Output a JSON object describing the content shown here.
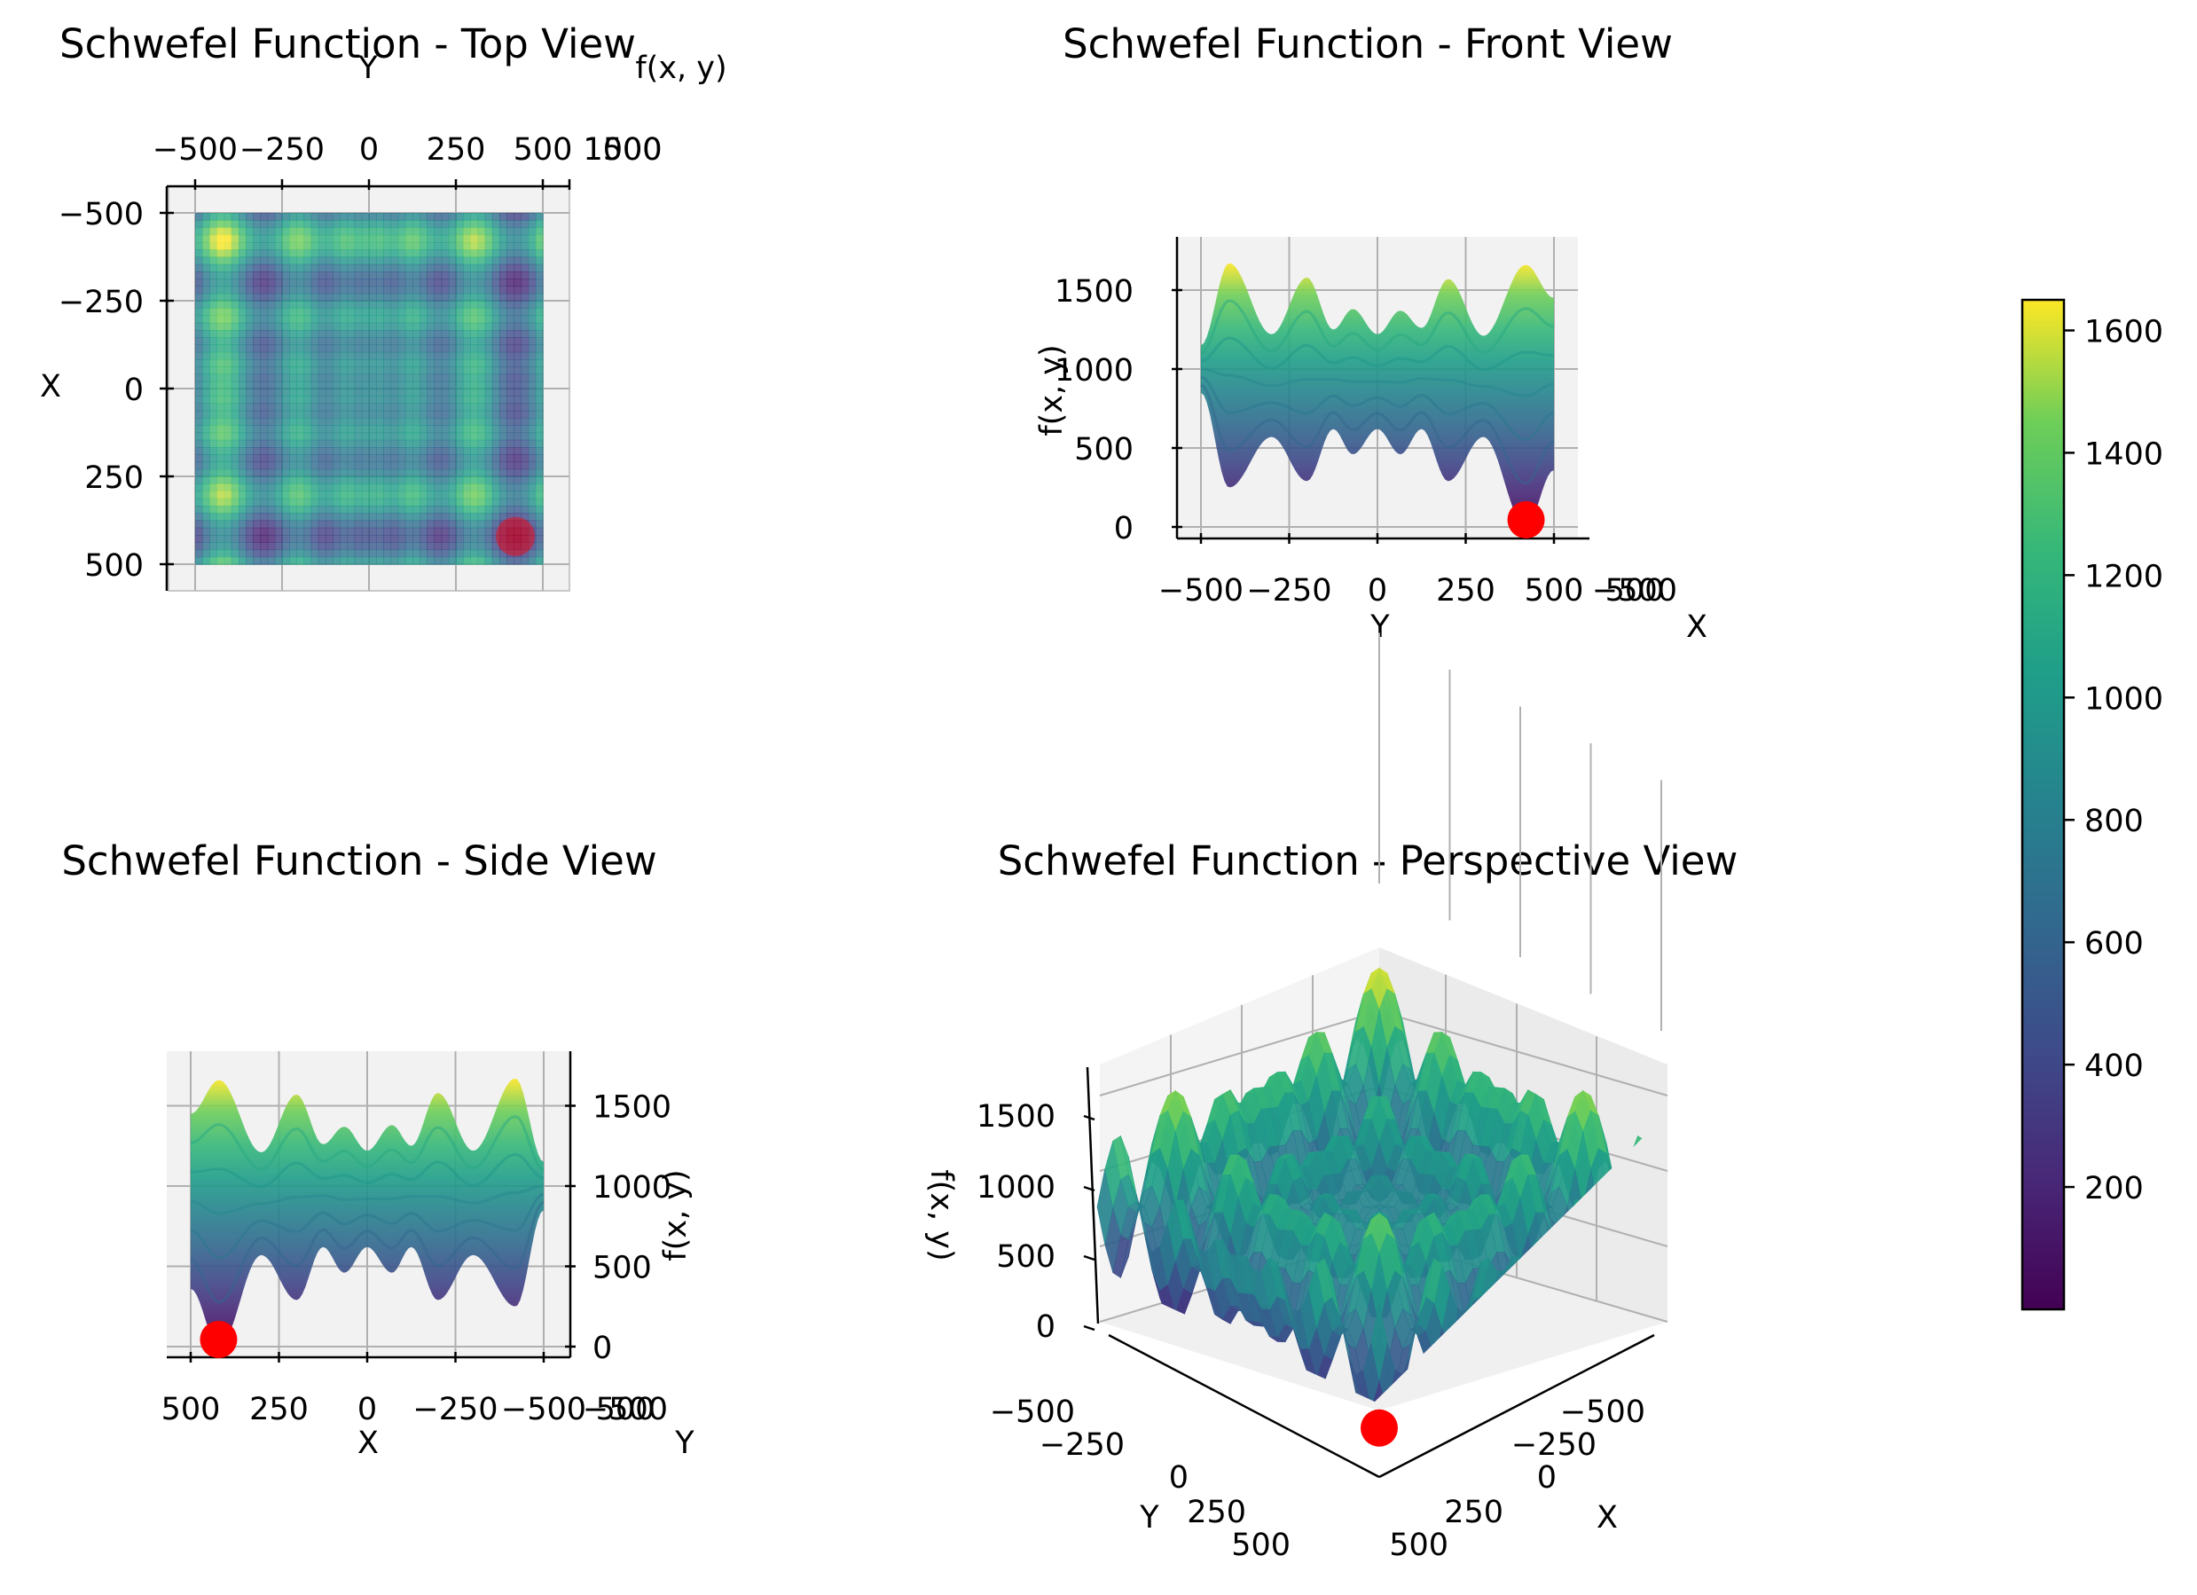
{
  "figure": {
    "titles": {
      "top": "Schwefel Function - Top View",
      "front": "Schwefel Function - Front View",
      "side": "Schwefel Function - Side View",
      "perspective": "Schwefel Function - Perspective View"
    },
    "axis_labels": {
      "x": "X",
      "y": "Y",
      "z": "f(x, y)"
    }
  },
  "chart_data": [
    {
      "type": "heatmap",
      "view": "top",
      "title": "Schwefel Function - Top View",
      "xlabel": "Y",
      "ylabel": "X",
      "zlabel": "f(x, y)",
      "xlim": [
        -500,
        500
      ],
      "ylim": [
        -500,
        500
      ],
      "x_ticks": [
        "−500",
        "−250",
        "0",
        "250",
        "500"
      ],
      "y_ticks": [
        "−500",
        "−250",
        "0",
        "250",
        "500"
      ],
      "z_ticks_overlapping": [
        "1000",
        "1500"
      ],
      "colormap": "viridis",
      "grid": true,
      "global_minimum_marker": {
        "x": 420.97,
        "y": 420.97,
        "z": 0,
        "color": "#ff0000"
      }
    },
    {
      "type": "area",
      "view": "front",
      "title": "Schwefel Function - Front View",
      "xlabel": "Y",
      "ylabel": "f(x, y)",
      "depth_label": "X",
      "xlim": [
        -500,
        500
      ],
      "zlim": [
        0,
        1800
      ],
      "x_ticks": [
        "−500",
        "−250",
        "0",
        "250",
        "500"
      ],
      "z_ticks": [
        "0",
        "500",
        "1000",
        "1500"
      ],
      "depth_ticks_overlapping": [
        "−500",
        "500"
      ],
      "upper_envelope": {
        "x": [
          -500,
          -420,
          -300,
          -200,
          -125,
          -70,
          0,
          65,
          125,
          200,
          300,
          420,
          500
        ],
        "z": [
          1150,
          1670,
          1220,
          1580,
          1250,
          1380,
          1220,
          1370,
          1260,
          1570,
          1210,
          1660,
          1450
        ]
      },
      "lower_envelope": {
        "x": [
          -500,
          -420,
          -300,
          -200,
          -125,
          -70,
          0,
          65,
          125,
          200,
          300,
          420,
          500
        ],
        "z": [
          850,
          250,
          570,
          290,
          620,
          460,
          620,
          460,
          620,
          290,
          570,
          0,
          360
        ]
      },
      "colormap": "viridis",
      "grid": true,
      "global_minimum_marker": {
        "x": 420.97,
        "z": 0,
        "color": "#ff0000"
      }
    },
    {
      "type": "area",
      "view": "side",
      "title": "Schwefel Function - Side View",
      "xlabel": "X",
      "ylabel": "f(x, y)",
      "depth_label": "Y",
      "xlim": [
        500,
        -500
      ],
      "zlim": [
        0,
        1800
      ],
      "x_ticks": [
        "500",
        "250",
        "0",
        "−250",
        "−500"
      ],
      "z_ticks": [
        "0",
        "500",
        "1000",
        "1500"
      ],
      "depth_ticks_overlapping": [
        "500",
        "−500"
      ],
      "upper_envelope": {
        "x": [
          500,
          420,
          300,
          200,
          125,
          65,
          0,
          -70,
          -125,
          -200,
          -300,
          -420,
          -500
        ],
        "z": [
          1450,
          1660,
          1210,
          1570,
          1260,
          1370,
          1220,
          1380,
          1250,
          1580,
          1220,
          1670,
          1150
        ]
      },
      "lower_envelope": {
        "x": [
          500,
          420,
          300,
          200,
          125,
          65,
          0,
          -70,
          -125,
          -200,
          -300,
          -420,
          -500
        ],
        "z": [
          360,
          0,
          570,
          290,
          620,
          460,
          620,
          460,
          620,
          290,
          570,
          250,
          850
        ]
      },
      "colormap": "viridis",
      "grid": true,
      "global_minimum_marker": {
        "x": 420.97,
        "z": 0,
        "color": "#ff0000"
      }
    },
    {
      "type": "area",
      "view": "perspective",
      "title": "Schwefel Function - Perspective View",
      "xlabel": "X",
      "ylabel": "Y",
      "zlabel": "f(x, y)",
      "xlim": [
        -500,
        500
      ],
      "ylim": [
        -500,
        500
      ],
      "zlim": [
        0,
        1800
      ],
      "x_ticks": [
        "−500",
        "−250",
        "0",
        "250",
        "500"
      ],
      "y_ticks": [
        "−500",
        "−250",
        "0",
        "250",
        "500"
      ],
      "z_ticks": [
        "0",
        "500",
        "1000",
        "1500"
      ],
      "colormap": "viridis",
      "grid": true,
      "global_minimum_marker": {
        "x": 420.97,
        "y": 420.97,
        "z": 0,
        "color": "#ff0000"
      }
    }
  ],
  "colorbar": {
    "colormap": "viridis",
    "range": [
      0,
      1650
    ],
    "ticks": [
      200,
      400,
      600,
      800,
      1000,
      1200,
      1400,
      1600
    ]
  }
}
